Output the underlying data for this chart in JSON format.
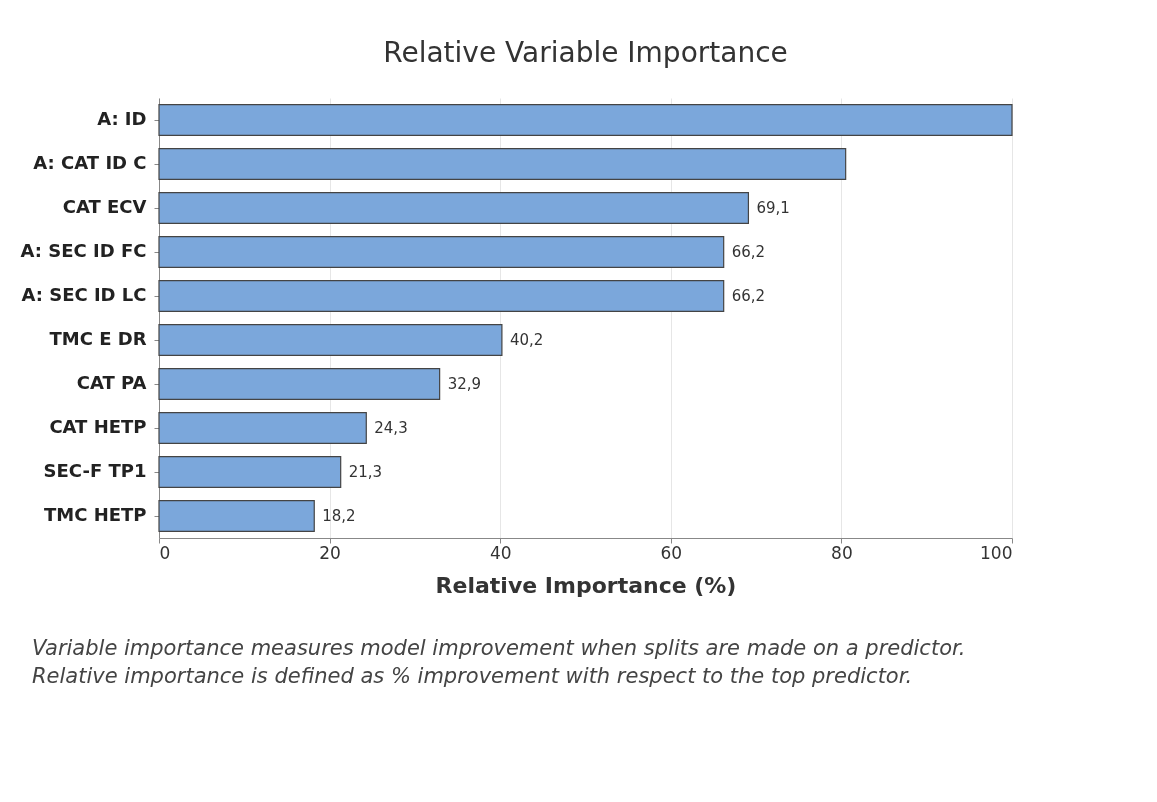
{
  "chart_data": {
    "type": "bar",
    "orientation": "horizontal",
    "title": "Relative Variable Importance",
    "xlabel": "Relative Importance (%)",
    "categories": [
      "A: ID",
      "A: CAT ID C",
      "CAT ECV",
      "A: SEC ID FC",
      "A: SEC ID LC",
      "TMC E DR",
      "CAT PA",
      "CAT HETP",
      "SEC-F TP1",
      "TMC HETP"
    ],
    "values": [
      100,
      80.5,
      69.1,
      66.2,
      66.2,
      40.2,
      32.9,
      24.3,
      21.3,
      18.2
    ],
    "value_labels": [
      null,
      null,
      "69,1",
      "66,2",
      "66,2",
      "40,2",
      "32,9",
      "24,3",
      "21,3",
      "18,2"
    ],
    "color": "#7ba7db",
    "xlim": [
      0,
      100
    ],
    "xticks": [
      0,
      20,
      40,
      60,
      80,
      100
    ],
    "grid": "x",
    "annotations": [
      "Variable importance measures model improvement when splits are made on a predictor.",
      "Relative importance is defined as % improvement with respect to the top predictor."
    ]
  }
}
